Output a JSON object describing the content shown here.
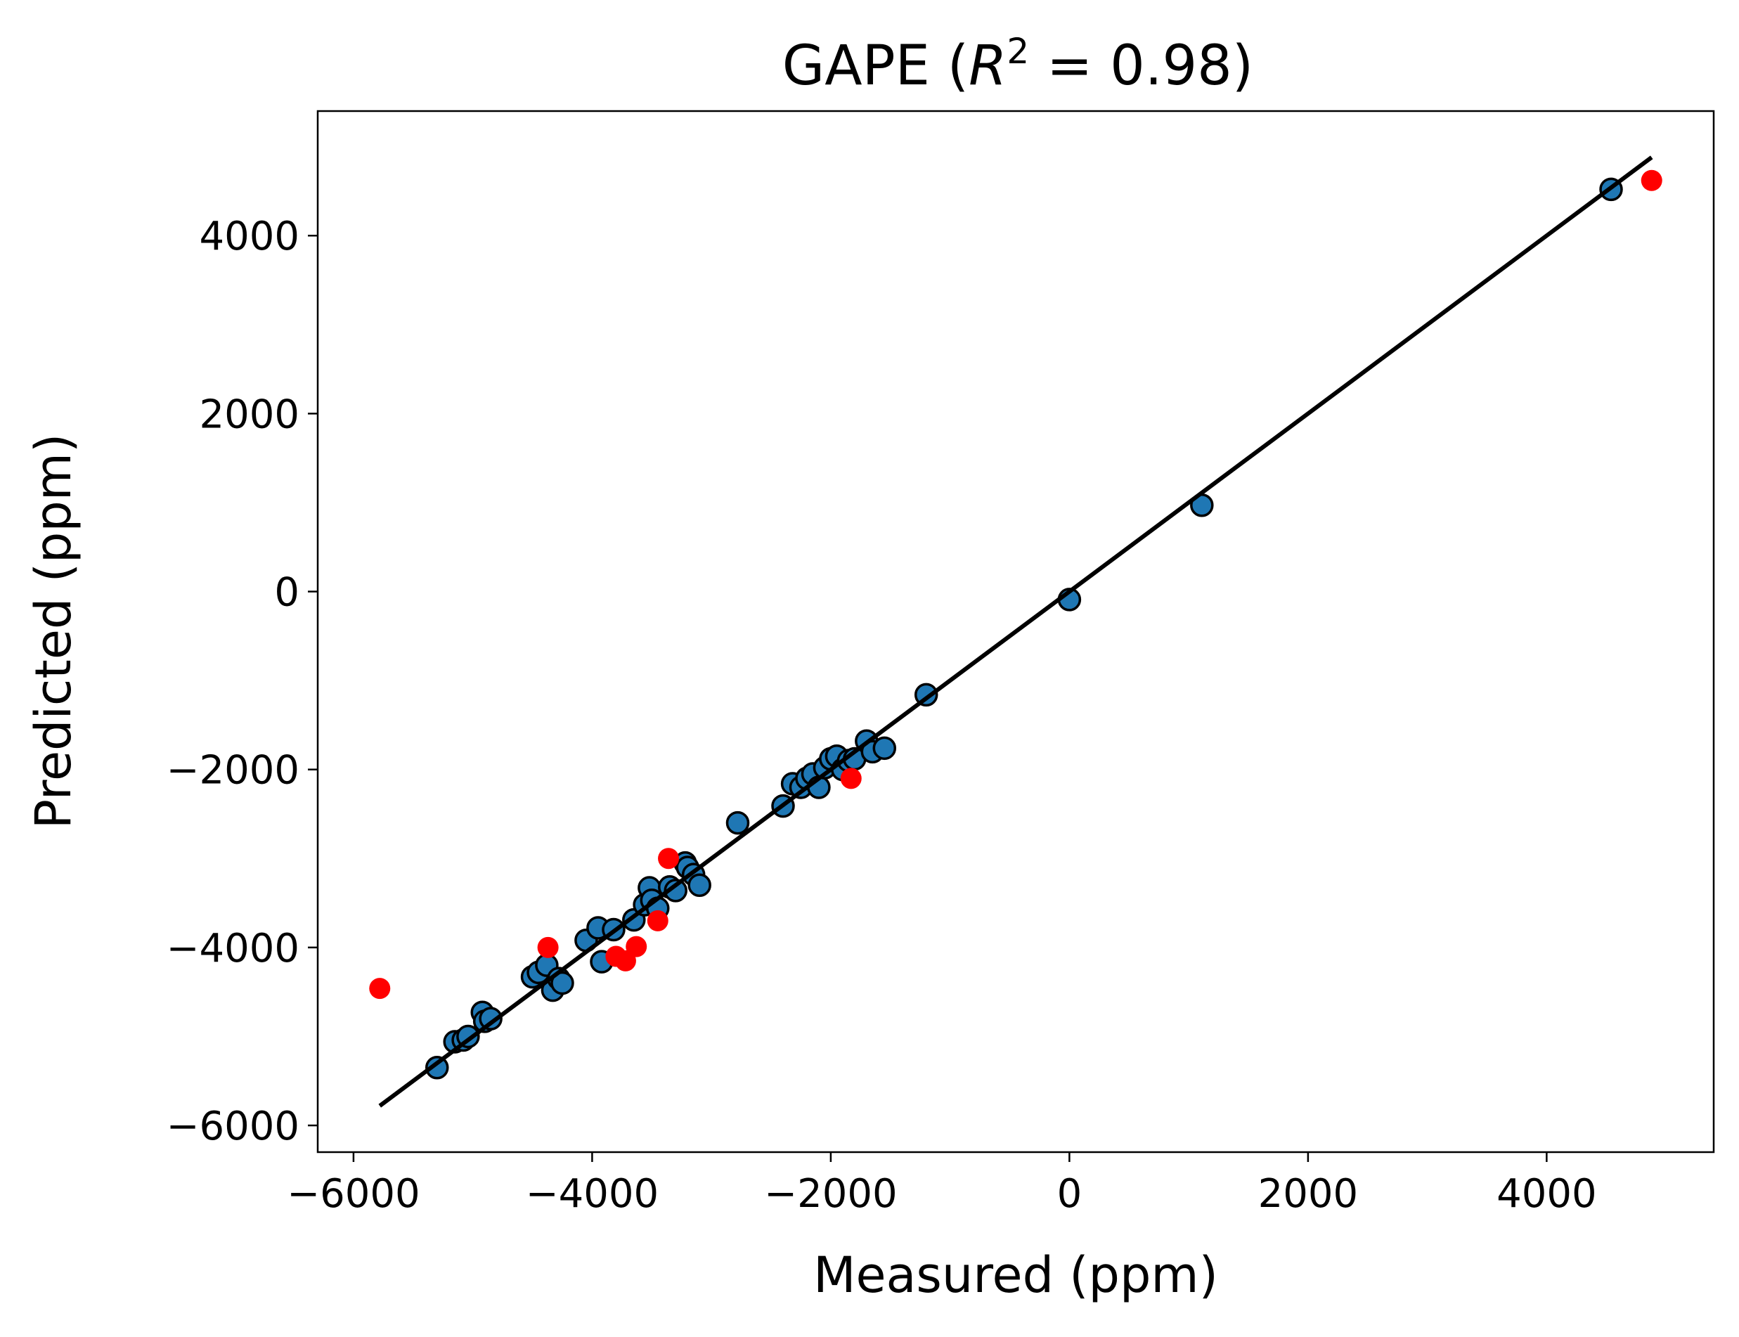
{
  "chart_data": {
    "type": "scatter",
    "title": {
      "prefix": "GAPE (",
      "symbol": "R",
      "exponent": "2",
      "suffix": " = 0.98)"
    },
    "xlabel": "Measured (ppm)",
    "ylabel": "Predicted (ppm)",
    "xlim": [
      -6300,
      5400
    ],
    "ylim": [
      -6300,
      5400
    ],
    "xticks": [
      -6000,
      -4000,
      -2000,
      0,
      2000,
      4000
    ],
    "yticks": [
      -6000,
      -4000,
      -2000,
      0,
      2000,
      4000
    ],
    "xtick_labels": [
      "−6000",
      "−4000",
      "−2000",
      "0",
      "2000",
      "4000"
    ],
    "ytick_labels": [
      "−6000",
      "−4000",
      "−2000",
      "0",
      "2000",
      "4000"
    ],
    "grid": false,
    "legend": "none",
    "fit_line": {
      "x": [
        -5780,
        4880
      ],
      "y": [
        -5780,
        4880
      ],
      "color": "#000000"
    },
    "series": [
      {
        "color": "#1f77b4",
        "edge_color": "#000000",
        "x": [
          -5300,
          -5150,
          -5080,
          -5040,
          -4920,
          -4900,
          -4850,
          -4500,
          -4450,
          -4380,
          -4330,
          -4280,
          -4250,
          -4050,
          -3950,
          -3920,
          -3820,
          -3650,
          -3560,
          -3520,
          -3500,
          -3450,
          -3350,
          -3300,
          -3220,
          -3200,
          -3150,
          -3100,
          -2780,
          -2400,
          -2320,
          -2250,
          -2200,
          -2150,
          -2100,
          -2050,
          -2000,
          -1950,
          -1900,
          -1850,
          -1800,
          -1700,
          -1650,
          -1550,
          -1200,
          0,
          1110,
          4540
        ],
        "y": [
          -5350,
          -5060,
          -5040,
          -5000,
          -4730,
          -4830,
          -4800,
          -4330,
          -4280,
          -4200,
          -4480,
          -4350,
          -4400,
          -3920,
          -3780,
          -4160,
          -3800,
          -3690,
          -3520,
          -3330,
          -3470,
          -3560,
          -3320,
          -3360,
          -3050,
          -3100,
          -3180,
          -3300,
          -2600,
          -2410,
          -2160,
          -2200,
          -2100,
          -2050,
          -2200,
          -1980,
          -1880,
          -1850,
          -2000,
          -1900,
          -1880,
          -1680,
          -1800,
          -1760,
          -1160,
          -90,
          970,
          4520
        ]
      },
      {
        "color": "#ff0000",
        "x": [
          -5780,
          -4370,
          -3800,
          -3720,
          -3630,
          -3450,
          -3360,
          -1830,
          4880
        ],
        "y": [
          -4460,
          -4000,
          -4100,
          -4150,
          -3990,
          -3700,
          -3000,
          -2100,
          4620
        ]
      }
    ]
  }
}
